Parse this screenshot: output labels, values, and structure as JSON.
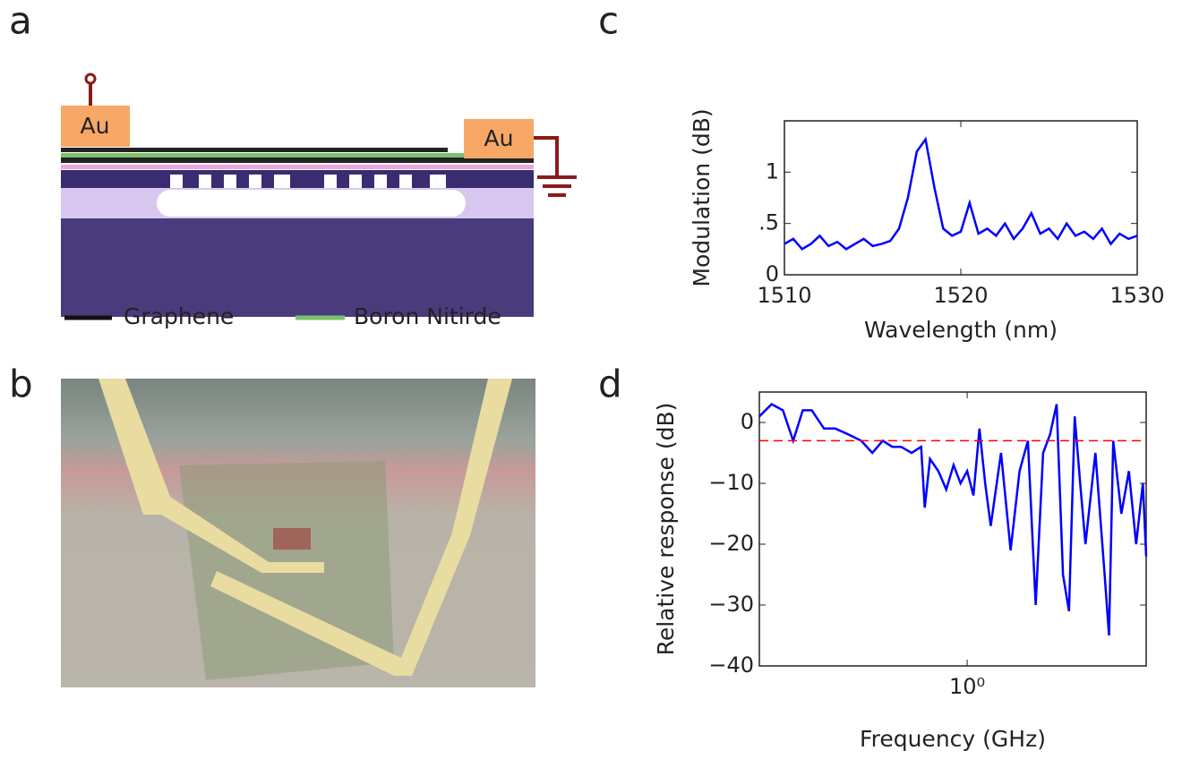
{
  "panels": {
    "a": "a",
    "b": "b",
    "c": "c",
    "d": "d"
  },
  "schematic": {
    "electrode_left": "Au",
    "electrode_right": "Au",
    "legend": [
      "Graphene",
      "Boron Nitirde"
    ]
  },
  "chart_data": [
    {
      "type": "line",
      "x_label": "Wavelength (nm)",
      "y_label": "Modulation (dB)",
      "x": [
        1510,
        1510.5,
        1511,
        1511.5,
        1512,
        1512.5,
        1513,
        1513.5,
        1514,
        1514.5,
        1515,
        1515.5,
        1516,
        1516.5,
        1517,
        1517.5,
        1518,
        1518.5,
        1519,
        1519.5,
        1520,
        1520.5,
        1521,
        1521.5,
        1522,
        1522.5,
        1523,
        1523.5,
        1524,
        1524.5,
        1525,
        1525.5,
        1526,
        1526.5,
        1527,
        1527.5,
        1528,
        1528.5,
        1529,
        1529.5,
        1530
      ],
      "series": [
        {
          "color": "#0000ff",
          "values": [
            0.3,
            0.35,
            0.25,
            0.3,
            0.38,
            0.28,
            0.32,
            0.25,
            0.3,
            0.35,
            0.28,
            0.3,
            0.33,
            0.45,
            0.75,
            1.2,
            1.32,
            0.85,
            0.45,
            0.38,
            0.42,
            0.7,
            0.4,
            0.45,
            0.38,
            0.5,
            0.35,
            0.45,
            0.6,
            0.4,
            0.45,
            0.35,
            0.5,
            0.38,
            0.42,
            0.35,
            0.45,
            0.3,
            0.4,
            0.35,
            0.38
          ]
        }
      ],
      "xlim": [
        1510,
        1530
      ],
      "xticks": [
        1510,
        1520,
        1530
      ],
      "ylim": [
        0,
        1.5
      ],
      "yticks": [
        0,
        {
          "value": 0.5,
          "label": ".5"
        },
        1
      ]
    },
    {
      "type": "line",
      "x_label": "Frequency (GHz)",
      "y_label": "Relative response (dB)",
      "x": [
        0.2,
        0.22,
        0.24,
        0.26,
        0.28,
        0.3,
        0.33,
        0.36,
        0.4,
        0.44,
        0.48,
        0.52,
        0.56,
        0.6,
        0.65,
        0.7,
        0.72,
        0.75,
        0.8,
        0.85,
        0.9,
        0.95,
        1.0,
        1.05,
        1.1,
        1.15,
        1.2,
        1.3,
        1.4,
        1.5,
        1.6,
        1.7,
        1.8,
        1.9,
        2.0,
        2.1,
        2.2,
        2.3,
        2.4,
        2.5,
        2.7,
        2.9,
        3.0,
        3.1,
        3.3,
        3.5,
        3.7,
        3.9,
        4.0
      ],
      "series": [
        {
          "color": "#0000ff",
          "values": [
            1,
            3,
            2,
            -3,
            2,
            2,
            -1,
            -1,
            -2,
            -3,
            -5,
            -3,
            -4,
            -4,
            -5,
            -4,
            -14,
            -6,
            -8,
            -11,
            -7,
            -10,
            -8,
            -12,
            -1,
            -10,
            -17,
            -5,
            -21,
            -8,
            -3,
            -30,
            -5,
            -2,
            3,
            -25,
            -31,
            1,
            -10,
            -20,
            -5,
            -25,
            -35,
            -3,
            -15,
            -8,
            -20,
            -10,
            -22
          ]
        }
      ],
      "xscale": "log",
      "xlim": [
        0.2,
        4
      ],
      "xticks": [
        {
          "value": 1,
          "label": "10⁰"
        }
      ],
      "ylim": [
        -40,
        5
      ],
      "yticks": [
        0,
        {
          "value": -10,
          "label": "−10"
        },
        {
          "value": -20,
          "label": "−20"
        },
        {
          "value": -30,
          "label": "−30"
        },
        {
          "value": -40,
          "label": "−40"
        }
      ],
      "reference_line": {
        "value": -3,
        "color": "#ff0000"
      }
    }
  ]
}
